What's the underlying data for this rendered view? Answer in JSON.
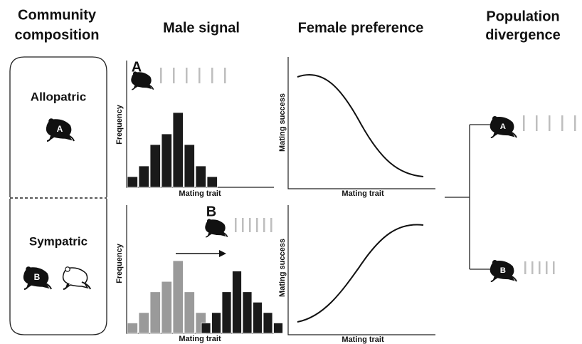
{
  "headers": [
    [
      "Community",
      "composition"
    ],
    [
      "Male signal"
    ],
    [
      "Female preference"
    ],
    [
      "Population",
      "divergence"
    ]
  ],
  "communities": [
    {
      "label": "Allopatric",
      "frog": "A"
    },
    {
      "label": "Sympatric",
      "frog": "B"
    }
  ],
  "signal_panels": [
    {
      "letter": "A",
      "y_label": "Frequency",
      "x_label": "Mating trait",
      "histograms": [
        {
          "color": "#1a1a1a",
          "values": [
            1,
            2,
            4,
            5,
            7,
            4,
            2,
            1
          ]
        }
      ]
    },
    {
      "letter": "B",
      "y_label": "Frequency",
      "x_label": "Mating trait",
      "histograms": [
        {
          "color": "#9a9a9a",
          "values": [
            1,
            2,
            4,
            5,
            7,
            4,
            2
          ]
        },
        {
          "color": "#1a1a1a",
          "values": [
            1,
            2,
            4,
            6,
            4,
            3,
            2,
            1
          ]
        }
      ]
    }
  ],
  "preference_panels": [
    {
      "y_label": "Mating success",
      "x_label": "Mating trait"
    },
    {
      "y_label": "Mating success",
      "x_label": "Mating trait"
    }
  ],
  "divergence": {
    "frogs": [
      "A",
      "B"
    ]
  }
}
